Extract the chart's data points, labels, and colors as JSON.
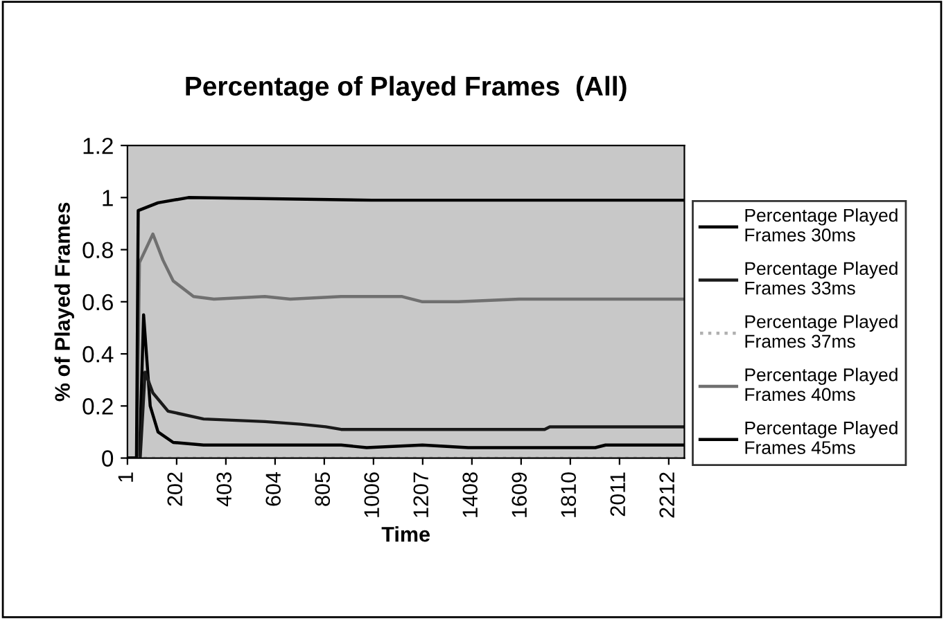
{
  "chart_data": {
    "type": "line",
    "title": "Percentage of Played Frames  (All)",
    "xlabel": "Time",
    "ylabel": "% of Played Frames",
    "xlim": [
      1,
      2276
    ],
    "xticks": [
      1,
      202,
      403,
      604,
      805,
      1006,
      1207,
      1408,
      1609,
      1810,
      2011,
      2212
    ],
    "ylim": [
      0,
      1.2
    ],
    "yticks": [
      0,
      0.2,
      0.4,
      0.6,
      0.8,
      1,
      1.2
    ],
    "grid": false,
    "legend": "right",
    "marker": "none",
    "series": [
      {
        "name": "Percentage Played Frames 30ms",
        "color": "#000000",
        "line_style": "solid",
        "x": [
          1,
          50,
          67,
          94,
          126,
          188,
          312,
          874,
          978,
          1206,
          1393,
          1912,
          1954,
          2276
        ],
        "values": [
          0,
          0,
          0.55,
          0.2,
          0.1,
          0.06,
          0.05,
          0.05,
          0.04,
          0.05,
          0.04,
          0.04,
          0.05,
          0.05
        ]
      },
      {
        "name": "Percentage Played Frames 33ms",
        "color": "#1a1a1a",
        "line_style": "solid",
        "x": [
          1,
          53,
          73,
          105,
          167,
          312,
          562,
          707,
          811,
          874,
          1227,
          1705,
          1726,
          2276
        ],
        "values": [
          0,
          0,
          0.33,
          0.25,
          0.18,
          0.15,
          0.14,
          0.13,
          0.12,
          0.11,
          0.11,
          0.11,
          0.12,
          0.12
        ]
      },
      {
        "name": "Percentage Played Frames 37ms",
        "color": "#b0b0b0",
        "line_style": "dotted",
        "x": [
          1,
          2276
        ],
        "values": [
          0,
          0
        ]
      },
      {
        "name": "Percentage Played Frames 40ms",
        "color": "#707070",
        "line_style": "solid",
        "x": [
          1,
          40,
          50,
          105,
          146,
          188,
          271,
          354,
          562,
          666,
          874,
          1123,
          1206,
          1352,
          1601,
          2120,
          2276
        ],
        "values": [
          0,
          0,
          0.75,
          0.86,
          0.76,
          0.68,
          0.62,
          0.61,
          0.62,
          0.61,
          0.62,
          0.62,
          0.6,
          0.6,
          0.61,
          0.61,
          0.61
        ]
      },
      {
        "name": "Percentage Played Frames 45ms",
        "color": "#000000",
        "line_style": "solid",
        "x": [
          1,
          38,
          45,
          126,
          250,
          1000,
          2276
        ],
        "values": [
          0,
          0,
          0.95,
          0.98,
          1.0,
          0.99,
          0.99
        ]
      }
    ]
  }
}
